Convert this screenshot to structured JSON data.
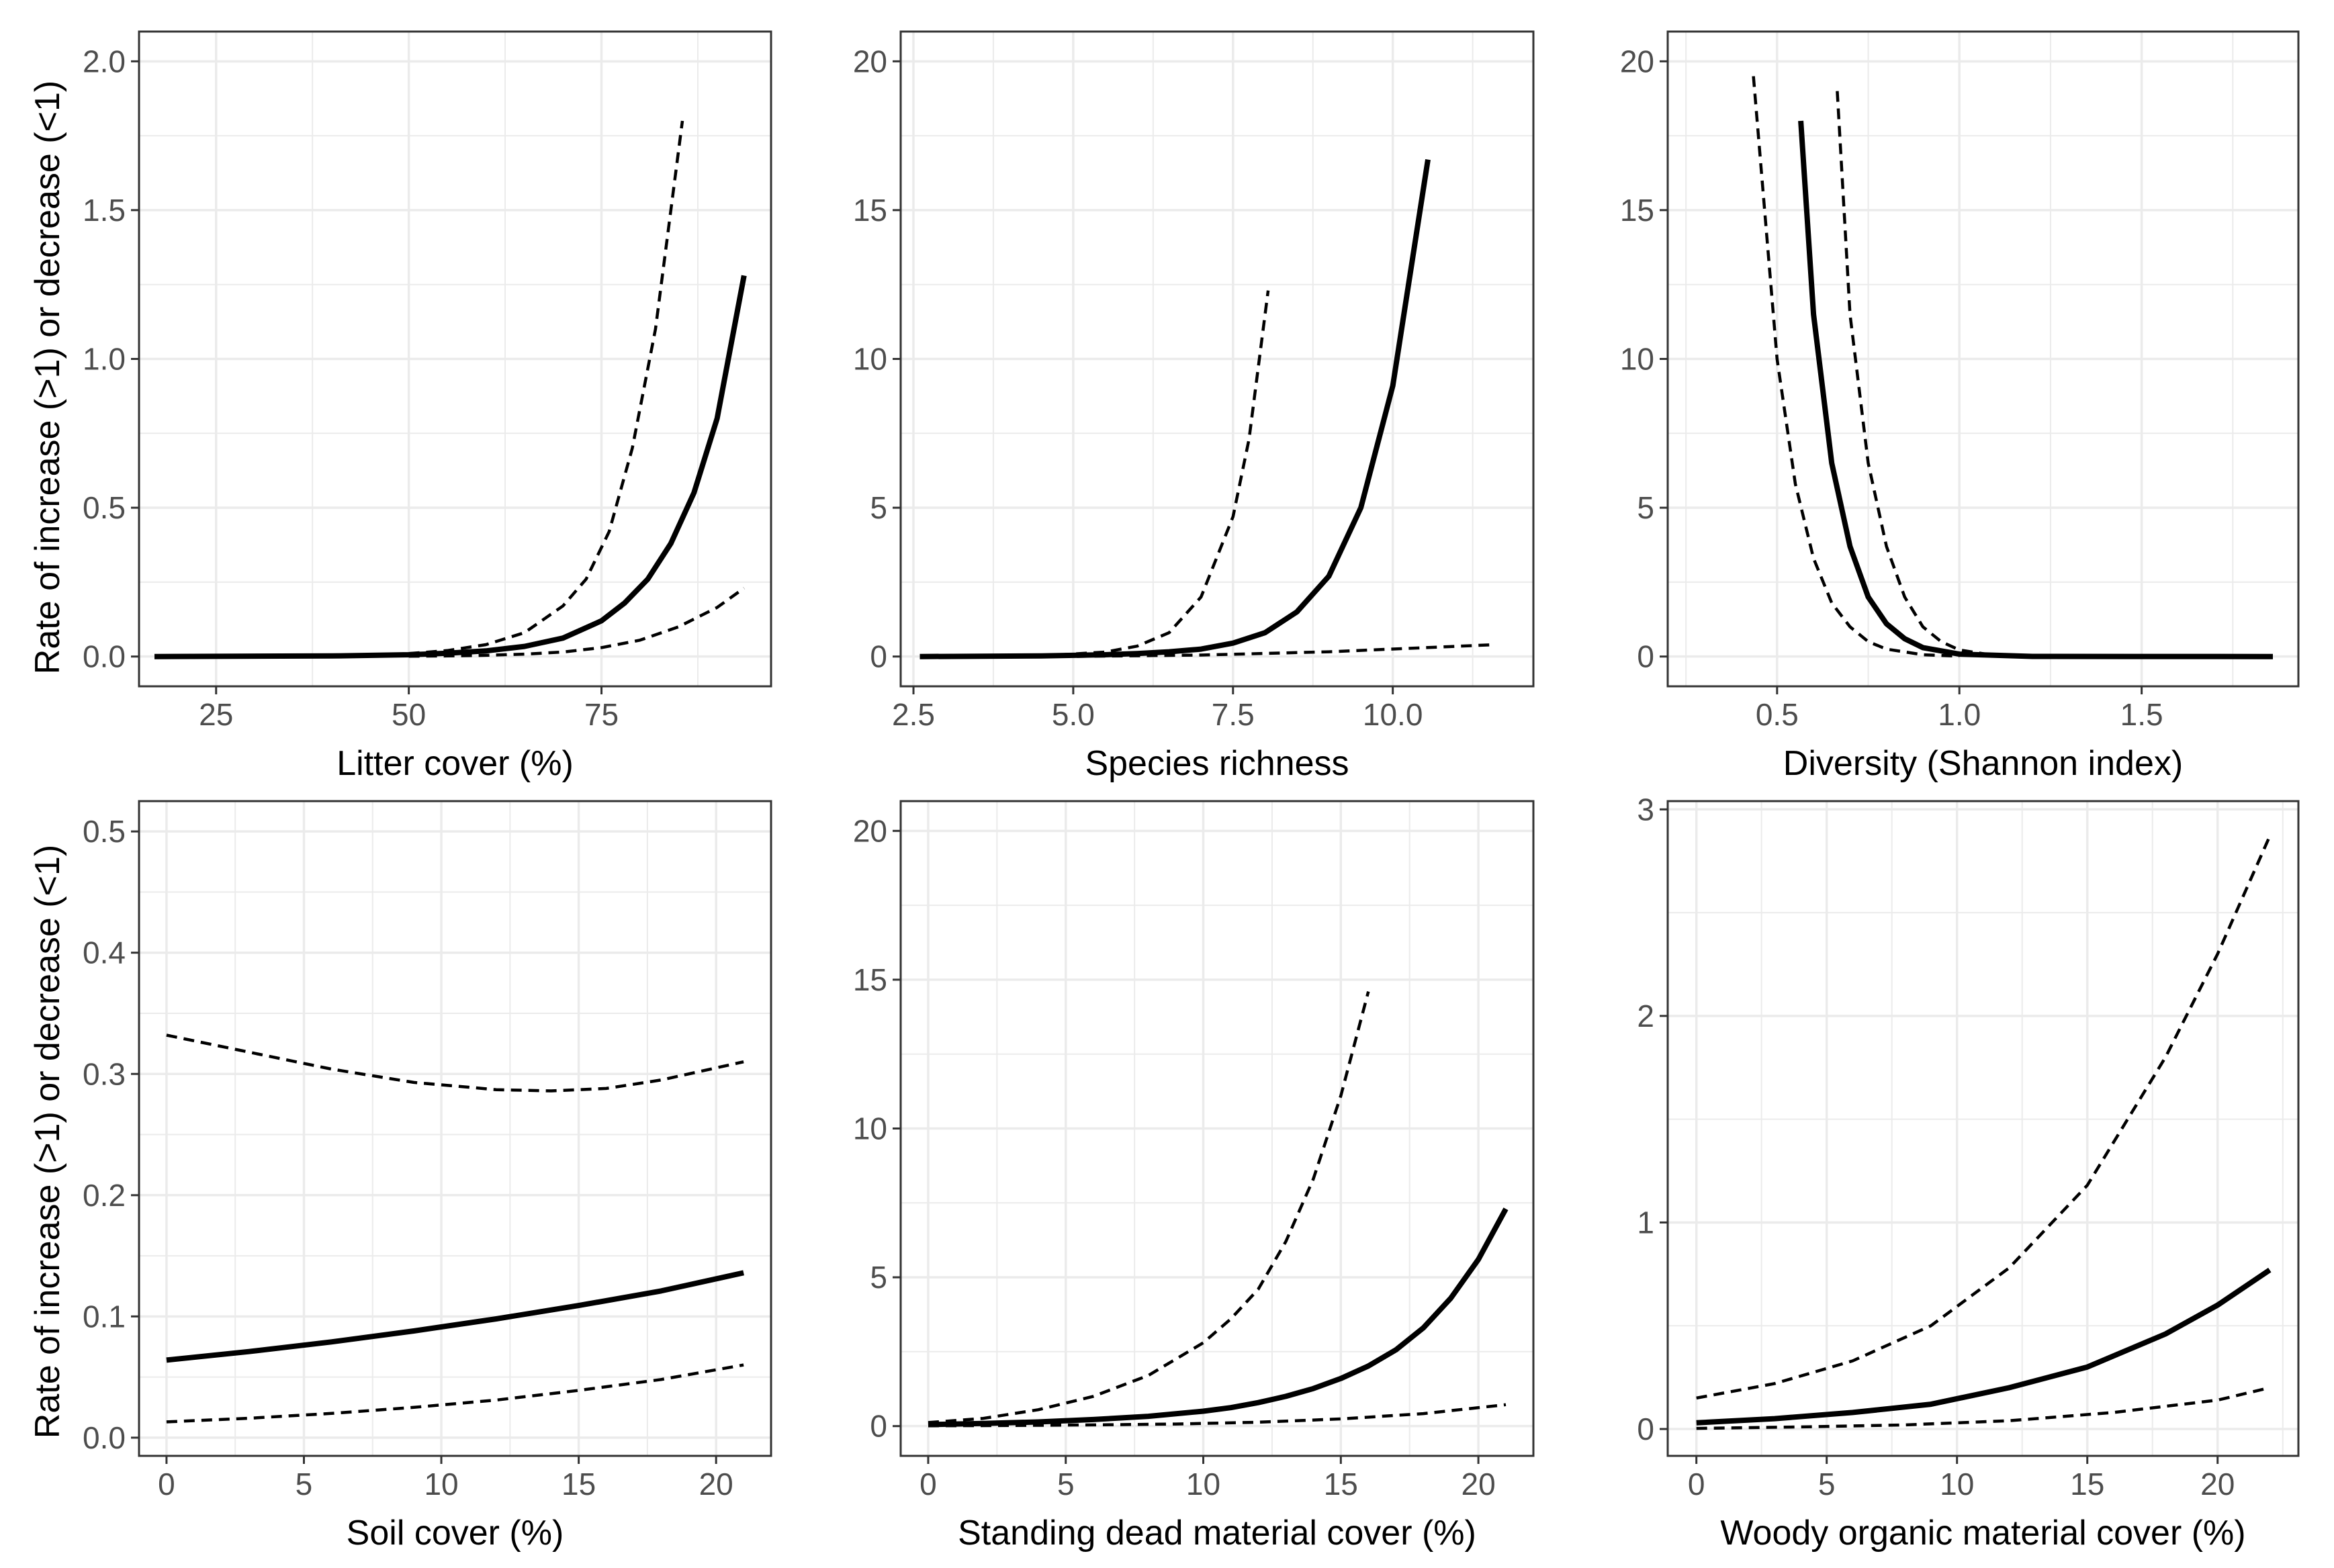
{
  "y_axis_label": "Rate of increase (>1) or decrease (<1)",
  "colors": {
    "grid": "#ebebeb",
    "frame": "#333333",
    "line": "#000000",
    "tick_text": "#4d4d4d"
  },
  "chart_data": [
    {
      "type": "line",
      "xlabel": "Litter cover (%)",
      "xlim": [
        15,
        97
      ],
      "ylim": [
        -0.1,
        2.1
      ],
      "xticks": [
        25,
        50,
        75
      ],
      "xtick_labels": [
        "25",
        "50",
        "75"
      ],
      "yticks": [
        0,
        0.5,
        1,
        1.5,
        2
      ],
      "ytick_labels": [
        "0.0",
        "0.5",
        "1.0",
        "1.5",
        "2.0"
      ],
      "series": [
        {
          "name": "estimate",
          "style": "solid",
          "x": [
            17,
            40,
            50,
            55,
            60,
            65,
            70,
            75,
            78,
            81,
            84,
            87,
            90,
            93.5
          ],
          "y": [
            0,
            0.002,
            0.006,
            0.011,
            0.019,
            0.034,
            0.062,
            0.12,
            0.18,
            0.26,
            0.38,
            0.55,
            0.8,
            1.28
          ]
        },
        {
          "name": "upper 95% CI",
          "style": "dashed",
          "x": [
            50,
            55,
            60,
            65,
            70,
            73,
            76,
            79,
            82,
            85.5
          ],
          "y": [
            0.01,
            0.02,
            0.04,
            0.08,
            0.17,
            0.26,
            0.42,
            0.7,
            1.1,
            1.8
          ]
        },
        {
          "name": "lower 95% CI",
          "style": "dashed",
          "x": [
            50,
            55,
            60,
            65,
            70,
            75,
            80,
            85,
            90,
            93.5
          ],
          "y": [
            0.001,
            0.002,
            0.004,
            0.008,
            0.015,
            0.03,
            0.055,
            0.1,
            0.165,
            0.23
          ]
        }
      ]
    },
    {
      "type": "line",
      "xlabel": "Species richness",
      "xlim": [
        2.3,
        12.2
      ],
      "ylim": [
        -1,
        21
      ],
      "xticks": [
        2.5,
        5,
        7.5,
        10
      ],
      "xtick_labels": [
        "2.5",
        "5.0",
        "7.5",
        "10.0"
      ],
      "yticks": [
        0,
        5,
        10,
        15,
        20
      ],
      "ytick_labels": [
        "0",
        "5",
        "10",
        "15",
        "20"
      ],
      "series": [
        {
          "name": "estimate",
          "style": "solid",
          "x": [
            2.6,
            4.5,
            5.5,
            6,
            6.5,
            7,
            7.5,
            8,
            8.5,
            9,
            9.5,
            10,
            10.55
          ],
          "y": [
            0,
            0.02,
            0.06,
            0.1,
            0.16,
            0.25,
            0.45,
            0.8,
            1.5,
            2.7,
            5,
            9.1,
            16.7
          ]
        },
        {
          "name": "upper 95% CI",
          "style": "dashed",
          "x": [
            4.5,
            5.5,
            6,
            6.5,
            7,
            7.5,
            7.75,
            8.05
          ],
          "y": [
            0.02,
            0.15,
            0.35,
            0.8,
            2,
            4.7,
            7.3,
            12.3
          ]
        },
        {
          "name": "lower 95% CI",
          "style": "dashed",
          "x": [
            2.6,
            5,
            7,
            9,
            11.6
          ],
          "y": [
            0,
            0.005,
            0.05,
            0.16,
            0.4
          ]
        }
      ]
    },
    {
      "type": "line",
      "xlabel": "Diversity (Shannon index)",
      "xlim": [
        0.2,
        1.93
      ],
      "ylim": [
        -1,
        21
      ],
      "xticks": [
        0.5,
        1.0,
        1.5
      ],
      "xtick_labels": [
        "0.5",
        "1.0",
        "1.5"
      ],
      "yticks": [
        0,
        5,
        10,
        15,
        20
      ],
      "ytick_labels": [
        "0",
        "5",
        "10",
        "15",
        "20"
      ],
      "series": [
        {
          "name": "estimate",
          "style": "solid",
          "x": [
            0.565,
            0.6,
            0.65,
            0.7,
            0.75,
            0.8,
            0.85,
            0.9,
            1.0,
            1.2,
            1.86
          ],
          "y": [
            18,
            11.5,
            6.5,
            3.7,
            2.0,
            1.1,
            0.6,
            0.3,
            0.08,
            0.005,
            0
          ]
        },
        {
          "name": "upper 95% CI",
          "style": "dashed",
          "x": [
            0.665,
            0.7,
            0.75,
            0.8,
            0.85,
            0.9,
            0.95,
            1.0,
            1.1
          ],
          "y": [
            19,
            11.5,
            6.5,
            3.7,
            2.0,
            1.0,
            0.5,
            0.22,
            0.03
          ]
        },
        {
          "name": "lower 95% CI",
          "style": "dashed",
          "x": [
            0.435,
            0.5,
            0.55,
            0.6,
            0.65,
            0.7,
            0.75,
            0.8,
            0.9,
            1.0
          ],
          "y": [
            19.5,
            10,
            5.8,
            3.3,
            1.8,
            1.0,
            0.5,
            0.25,
            0.06,
            0.01
          ]
        }
      ]
    },
    {
      "type": "line",
      "xlabel": "Soil cover (%)",
      "xlim": [
        -1,
        22
      ],
      "ylim": [
        -0.015,
        0.525
      ],
      "xticks": [
        0,
        5,
        10,
        15,
        20
      ],
      "xtick_labels": [
        "0",
        "5",
        "10",
        "15",
        "20"
      ],
      "yticks": [
        0,
        0.1,
        0.2,
        0.3,
        0.4,
        0.5
      ],
      "ytick_labels": [
        "0.0",
        "0.1",
        "0.2",
        "0.3",
        "0.4",
        "0.5"
      ],
      "series": [
        {
          "name": "estimate",
          "style": "solid",
          "x": [
            0,
            3,
            6,
            9,
            12,
            15,
            18,
            21
          ],
          "y": [
            0.064,
            0.071,
            0.079,
            0.088,
            0.098,
            0.109,
            0.121,
            0.136
          ]
        },
        {
          "name": "upper 95% CI",
          "style": "dashed",
          "x": [
            0,
            3,
            6,
            9,
            12,
            14,
            16,
            18,
            21
          ],
          "y": [
            0.332,
            0.318,
            0.304,
            0.293,
            0.287,
            0.286,
            0.288,
            0.295,
            0.31
          ]
        },
        {
          "name": "lower 95% CI",
          "style": "dashed",
          "x": [
            0,
            3,
            6,
            9,
            12,
            15,
            18,
            21
          ],
          "y": [
            0.013,
            0.016,
            0.02,
            0.025,
            0.031,
            0.039,
            0.048,
            0.06
          ]
        }
      ]
    },
    {
      "type": "line",
      "xlabel": "Standing dead material cover (%)",
      "xlim": [
        -1,
        22
      ],
      "ylim": [
        -1,
        21
      ],
      "xticks": [
        0,
        5,
        10,
        15,
        20
      ],
      "xtick_labels": [
        "0",
        "5",
        "10",
        "15",
        "20"
      ],
      "yticks": [
        0,
        5,
        10,
        15,
        20
      ],
      "ytick_labels": [
        "0",
        "5",
        "10",
        "15",
        "20"
      ],
      "series": [
        {
          "name": "estimate",
          "style": "solid",
          "x": [
            0,
            2,
            4,
            6,
            8,
            10,
            11,
            12,
            13,
            14,
            15,
            16,
            17,
            18,
            19,
            20,
            21
          ],
          "y": [
            0.05,
            0.09,
            0.14,
            0.22,
            0.33,
            0.5,
            0.62,
            0.79,
            1.0,
            1.26,
            1.6,
            2.02,
            2.56,
            3.3,
            4.3,
            5.6,
            7.3
          ]
        },
        {
          "name": "upper 95% CI",
          "style": "dashed",
          "x": [
            0,
            2,
            4,
            6,
            8,
            10,
            11,
            12,
            13,
            14,
            15,
            16
          ],
          "y": [
            0.12,
            0.26,
            0.55,
            1.0,
            1.7,
            2.8,
            3.6,
            4.6,
            6.2,
            8.3,
            11.1,
            14.6
          ]
        },
        {
          "name": "lower 95% CI",
          "style": "dashed",
          "x": [
            0,
            3,
            6,
            9,
            12,
            15,
            18,
            21
          ],
          "y": [
            0.01,
            0.02,
            0.04,
            0.07,
            0.13,
            0.24,
            0.42,
            0.72
          ]
        }
      ]
    },
    {
      "type": "line",
      "xlabel": "Woody organic material cover (%)",
      "xlim": [
        -1.1,
        23.1
      ],
      "ylim": [
        -0.13,
        3.04
      ],
      "xticks": [
        0,
        5,
        10,
        15,
        20
      ],
      "xtick_labels": [
        "0",
        "5",
        "10",
        "15",
        "20"
      ],
      "yticks": [
        0,
        1,
        2,
        3
      ],
      "ytick_labels": [
        "0",
        "1",
        "2",
        "3"
      ],
      "series": [
        {
          "name": "estimate",
          "style": "solid",
          "x": [
            0,
            3,
            6,
            9,
            12,
            15,
            18,
            20,
            22
          ],
          "y": [
            0.03,
            0.05,
            0.08,
            0.12,
            0.2,
            0.3,
            0.46,
            0.6,
            0.77
          ]
        },
        {
          "name": "upper 95% CI",
          "style": "dashed",
          "x": [
            0,
            3,
            6,
            9,
            12,
            15,
            18,
            20,
            22
          ],
          "y": [
            0.15,
            0.22,
            0.33,
            0.5,
            0.78,
            1.18,
            1.8,
            2.3,
            2.87
          ]
        },
        {
          "name": "lower 95% CI",
          "style": "dashed",
          "x": [
            0,
            4,
            8,
            12,
            16,
            20,
            22
          ],
          "y": [
            0.003,
            0.01,
            0.02,
            0.04,
            0.08,
            0.14,
            0.2
          ]
        }
      ]
    }
  ]
}
